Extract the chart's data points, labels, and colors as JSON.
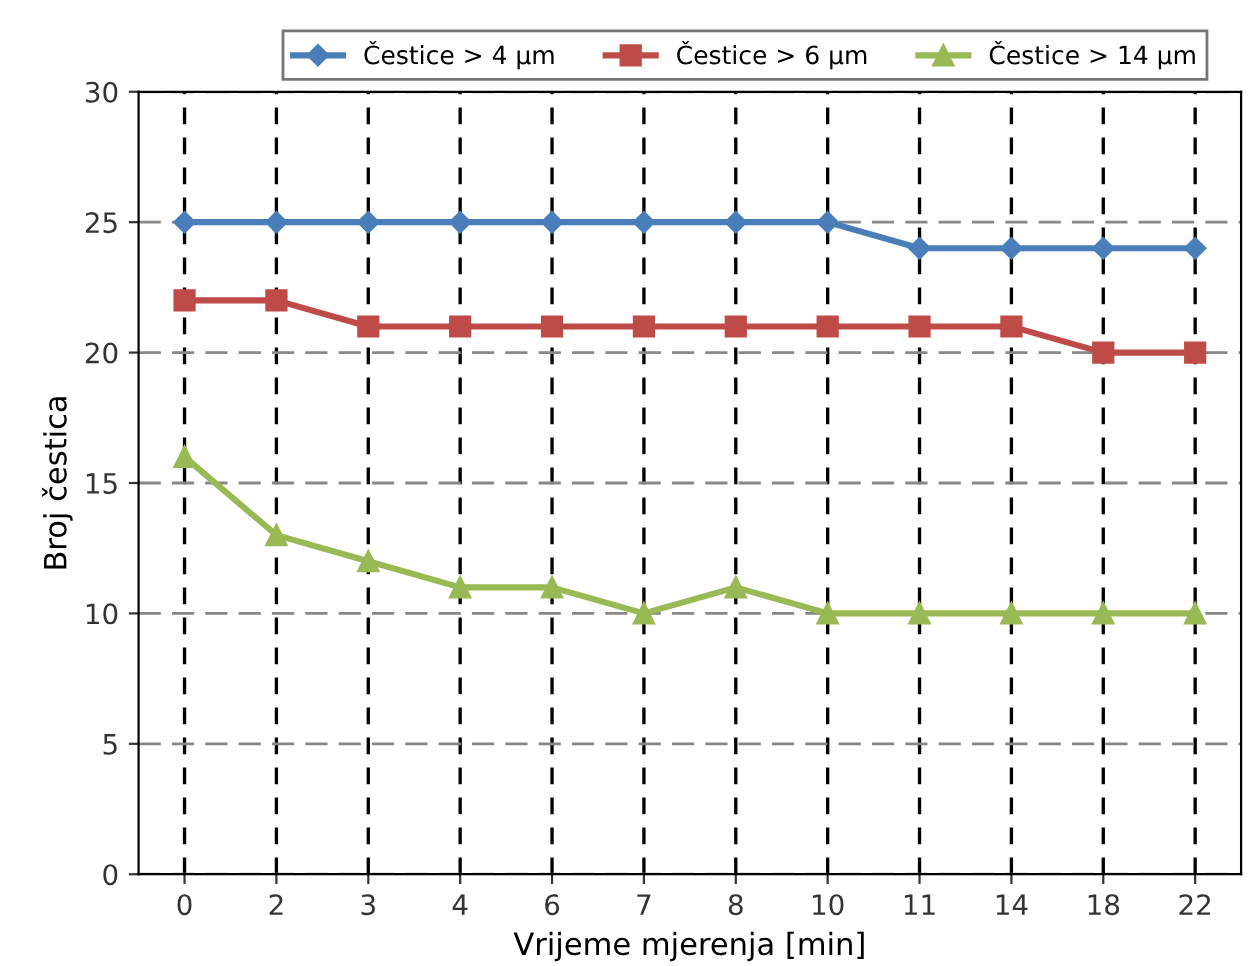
{
  "chart_data": {
    "type": "line",
    "xlabel": "Vrijeme mjerenja [min]",
    "ylabel": "Broj čestica",
    "categories": [
      "0",
      "2",
      "3",
      "4",
      "6",
      "7",
      "8",
      "10",
      "11",
      "14",
      "18",
      "22"
    ],
    "series": [
      {
        "name": "Čestice > 4 µm",
        "color": "#4a7ebb",
        "marker": "diamond",
        "values": [
          25,
          25,
          25,
          25,
          25,
          25,
          25,
          25,
          24,
          24,
          24,
          24
        ]
      },
      {
        "name": "Čestice > 6 µm",
        "color": "#be4b48",
        "marker": "square",
        "values": [
          22,
          22,
          21,
          21,
          21,
          21,
          21,
          21,
          21,
          21,
          20,
          20
        ]
      },
      {
        "name": "Čestice > 14 µm",
        "color": "#98b954",
        "marker": "triangle",
        "values": [
          16,
          13,
          12,
          11,
          11,
          10,
          11,
          10,
          10,
          10,
          10,
          10
        ]
      }
    ],
    "ylim": [
      0,
      30
    ],
    "yticks": [
      0,
      5,
      10,
      15,
      20,
      25,
      30
    ],
    "grid": true,
    "legend": "top",
    "line_style": "solid"
  }
}
